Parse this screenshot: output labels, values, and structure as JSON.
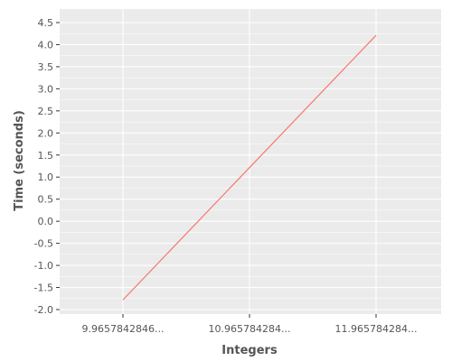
{
  "chart_data": {
    "type": "line",
    "xlabel": "Integers",
    "ylabel": "Time (seconds)",
    "categories": [
      "9.9657842846...",
      "10.965784284...",
      "11.965784284..."
    ],
    "series": [
      {
        "values": [
          -1.78,
          null,
          4.21
        ],
        "color": "#f8766d"
      }
    ],
    "ylim": [
      -2.0,
      4.5
    ],
    "y_ticks": [
      "4.5",
      "4.0",
      "3.5",
      "3.0",
      "2.5",
      "2.0",
      "1.5",
      "1.0",
      "0.5",
      "0.0",
      "-0.5",
      "-1.0",
      "-1.5",
      "-2.0"
    ],
    "grid": true,
    "legend": "none",
    "colors": {
      "panel": "#ebebeb",
      "grid": "#ffffff",
      "text": "#555555"
    }
  }
}
